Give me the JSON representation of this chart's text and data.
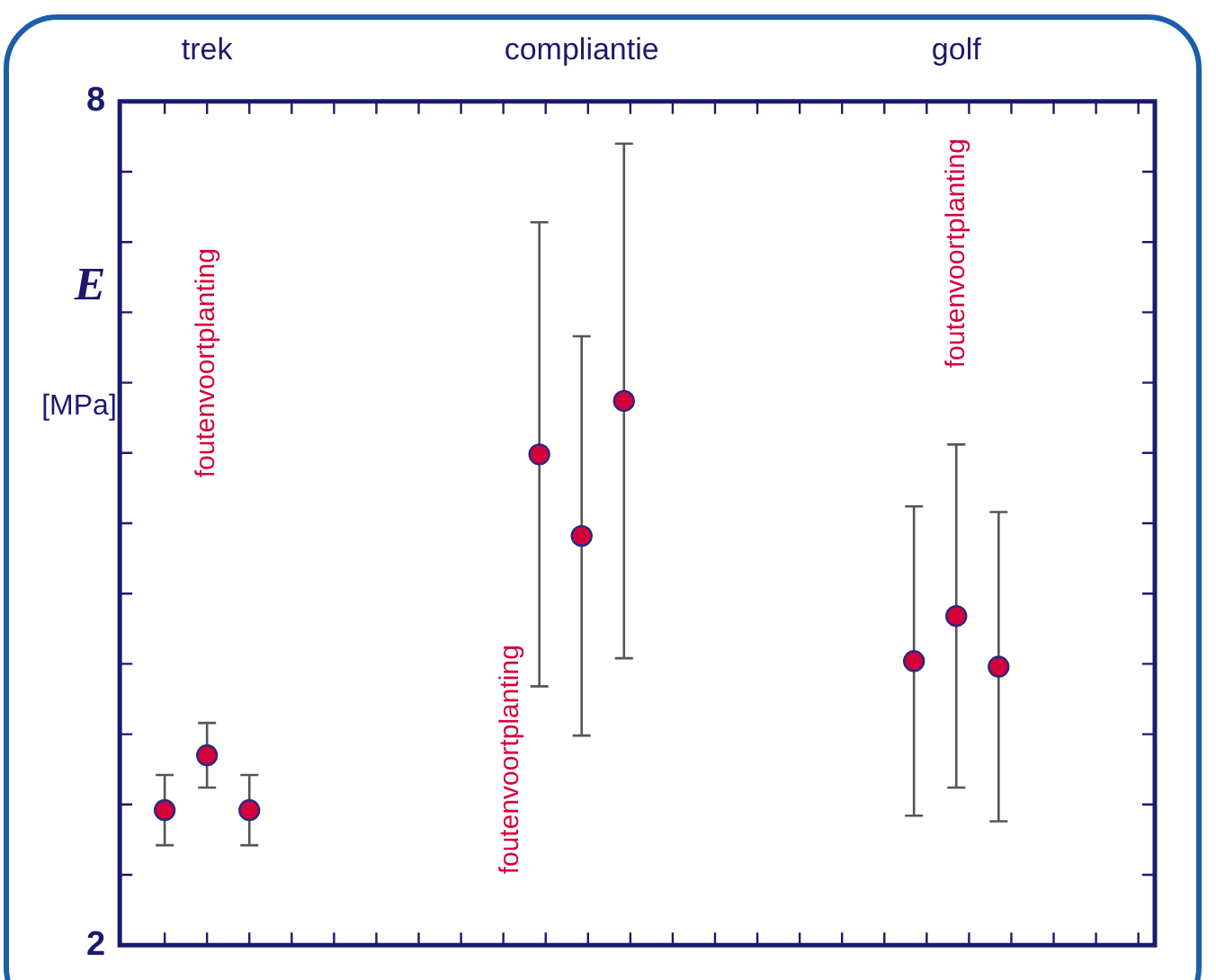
{
  "chart_data": {
    "type": "scatter",
    "ylabel": "E [MPa]",
    "categories": [
      "trek",
      "compliantie",
      "golf"
    ],
    "series": [
      {
        "color": "#d4003c",
        "values": [
          2.96,
          5.49,
          4.02
        ],
        "errors": [
          0.25,
          1.65,
          1.1
        ]
      },
      {
        "color": "#d4003c",
        "values": [
          3.35,
          4.91,
          4.34
        ],
        "errors": [
          0.23,
          1.42,
          1.22
        ]
      },
      {
        "color": "#d4003c",
        "values": [
          2.96,
          5.87,
          3.98
        ],
        "errors": [
          0.25,
          1.83,
          1.1
        ]
      }
    ],
    "ylim": [
      2,
      8
    ],
    "yticks": [
      {
        "value": 2,
        "label": "2"
      },
      {
        "value": 2.5,
        "label": null
      },
      {
        "value": 3,
        "label": null
      },
      {
        "value": 3.5,
        "label": null
      },
      {
        "value": 4,
        "label": null
      },
      {
        "value": 4.5,
        "label": null
      },
      {
        "value": 5,
        "label": null
      },
      {
        "value": 5.5,
        "label": null
      },
      {
        "value": 6,
        "label": null
      },
      {
        "value": 6.5,
        "label": null
      },
      {
        "value": 7,
        "label": null
      },
      {
        "value": 7.5,
        "label": null
      },
      {
        "value": 8,
        "label": "8"
      }
    ],
    "annotations": [
      "foutenvoortplanting",
      "foutenvoortplanting",
      "foutenvoortplanting"
    ],
    "marker": "circle",
    "grid": false,
    "legend": false
  }
}
